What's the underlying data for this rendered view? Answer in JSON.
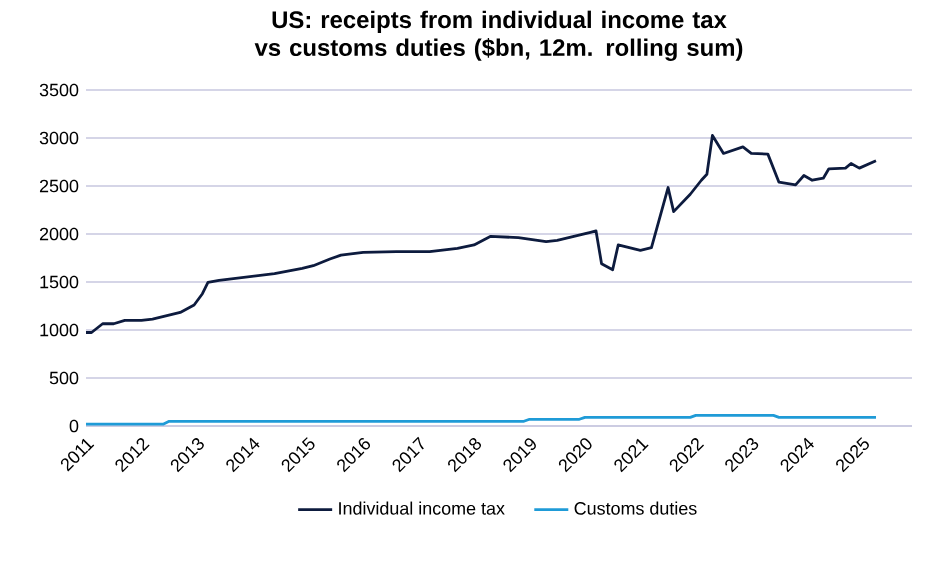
{
  "chart_data": {
    "type": "line",
    "title": "US: receipts from individual income tax vs customs duties ($bn, 12m. rolling sum)",
    "xlim": [
      2011,
      2025.9
    ],
    "xticks": [
      2011,
      2012,
      2013,
      2014,
      2015,
      2016,
      2017,
      2018,
      2019,
      2020,
      2021,
      2022,
      2023,
      2024,
      2025
    ],
    "ylim": [
      0,
      3500
    ],
    "yticks": [
      0,
      500,
      1000,
      1500,
      2000,
      2500,
      3000,
      3500
    ],
    "grid": "y",
    "legend": "bottom",
    "marker": "none",
    "line_style": "solid",
    "series": [
      {
        "name": "Individual income tax",
        "color": "#0d1b3e",
        "x": [
          2011.0,
          2011.1,
          2011.3,
          2011.5,
          2011.7,
          2012.0,
          2012.2,
          2012.45,
          2012.7,
          2012.95,
          2013.1,
          2013.2,
          2013.4,
          2013.9,
          2014.4,
          2014.9,
          2015.1,
          2015.4,
          2015.6,
          2016.0,
          2016.6,
          2017.2,
          2017.7,
          2018.0,
          2018.3,
          2018.8,
          2019.3,
          2019.5,
          2020.1,
          2020.2,
          2020.3,
          2020.5,
          2020.6,
          2021.0,
          2021.2,
          2021.5,
          2021.6,
          2021.9,
          2022.1,
          2022.2,
          2022.3,
          2022.5,
          2022.85,
          2023.0,
          2023.3,
          2023.5,
          2023.8,
          2023.95,
          2024.1,
          2024.3,
          2024.4,
          2024.7,
          2024.8,
          2024.95,
          2025.25
        ],
        "values": [
          974,
          974,
          1065,
          1065,
          1100,
          1100,
          1113,
          1148,
          1183,
          1260,
          1378,
          1496,
          1517,
          1552,
          1587,
          1642,
          1670,
          1740,
          1780,
          1809,
          1816,
          1816,
          1851,
          1886,
          1976,
          1962,
          1920,
          1934,
          2018,
          2032,
          1691,
          1628,
          1886,
          1830,
          1858,
          2484,
          2233,
          2414,
          2560,
          2623,
          3027,
          2839,
          2908,
          2839,
          2832,
          2540,
          2512,
          2609,
          2560,
          2581,
          2679,
          2686,
          2734,
          2686,
          2762
        ]
      },
      {
        "name": "Customs duties",
        "color": "#1f9bd7",
        "x": [
          2011.0,
          2012.4,
          2012.5,
          2018.9,
          2019.0,
          2019.9,
          2020.0,
          2021.9,
          2022.0,
          2023.4,
          2023.5,
          2025.25
        ],
        "values": [
          20,
          20,
          49,
          49,
          70,
          70,
          90,
          90,
          111,
          111,
          90,
          90
        ]
      }
    ]
  }
}
